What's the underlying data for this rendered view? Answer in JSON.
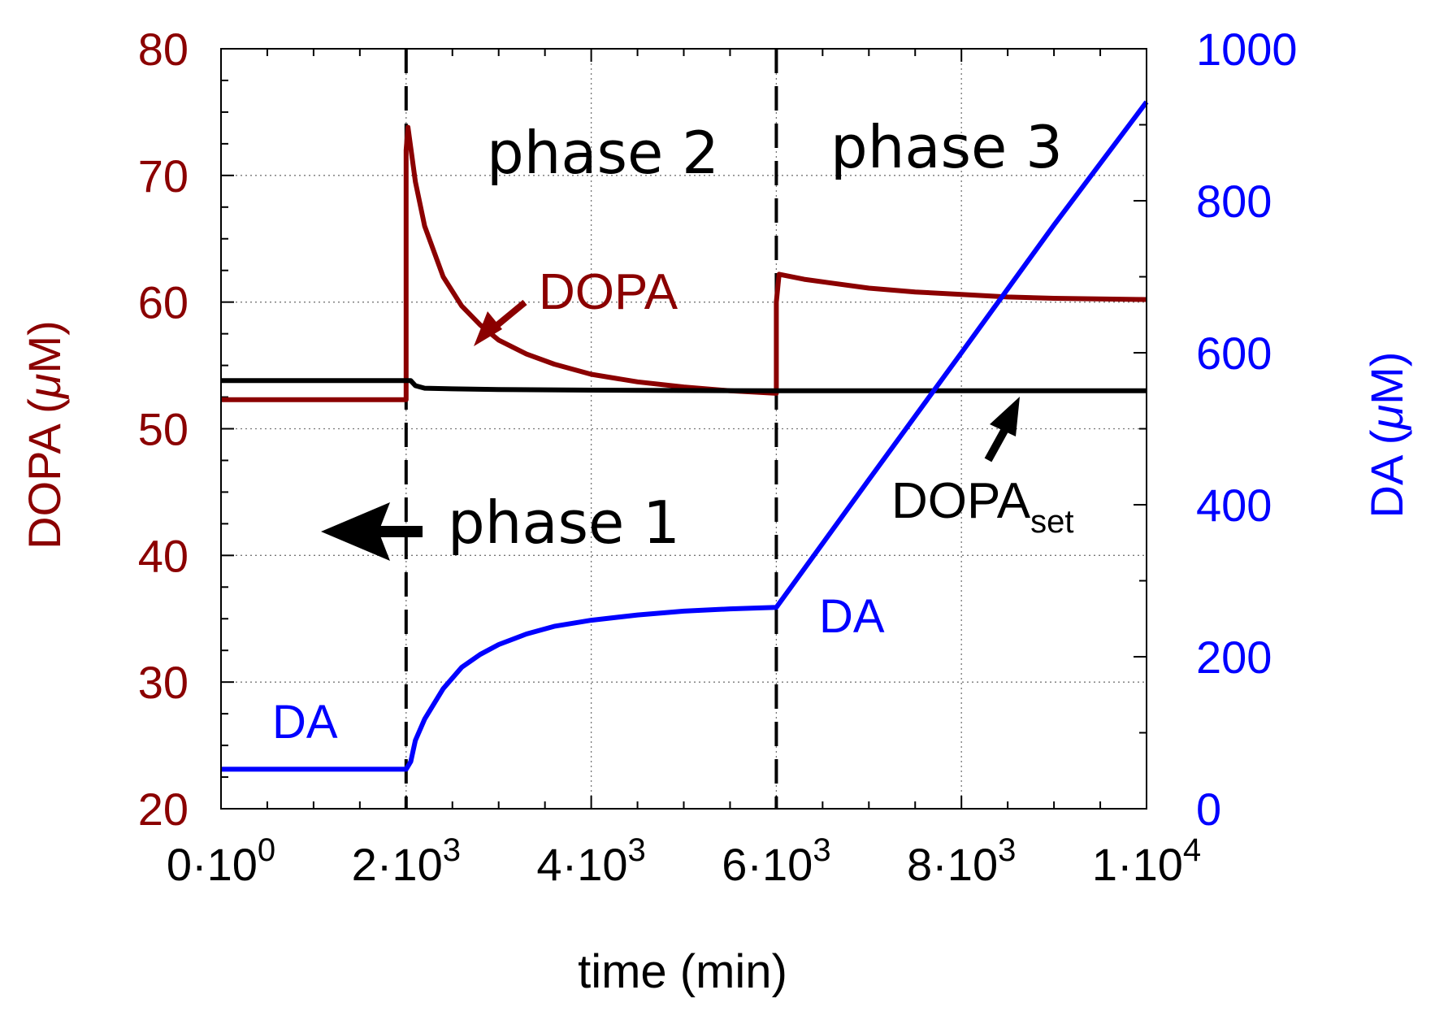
{
  "chart_data": {
    "type": "line",
    "x_axis": {
      "label": "time (min)",
      "range": [
        0,
        10000
      ],
      "ticks": [
        {
          "value": 0,
          "mantissa": "0·10",
          "exponent": "0"
        },
        {
          "value": 2000,
          "mantissa": "2·10",
          "exponent": "3"
        },
        {
          "value": 4000,
          "mantissa": "4·10",
          "exponent": "3"
        },
        {
          "value": 6000,
          "mantissa": "6·10",
          "exponent": "3"
        },
        {
          "value": 8000,
          "mantissa": "8·10",
          "exponent": "3"
        },
        {
          "value": 10000,
          "mantissa": "1·10",
          "exponent": "4"
        }
      ]
    },
    "y_left": {
      "label_prefix": "DOPA (",
      "label_mu": "μ",
      "label_suffix": "M)",
      "range": [
        20,
        80
      ],
      "ticks": [
        20,
        30,
        40,
        50,
        60,
        70,
        80
      ],
      "color": "#8b0000"
    },
    "y_right": {
      "label_prefix": "DA (",
      "label_mu": "μ",
      "label_suffix": "M)",
      "range": [
        0,
        1000
      ],
      "ticks": [
        0,
        200,
        400,
        600,
        800,
        1000
      ],
      "color": "#0000ff"
    },
    "grid": true,
    "phase_boundaries": [
      2000,
      6000
    ],
    "series": [
      {
        "name": "DOPA",
        "axis": "left",
        "color": "#8b0000",
        "points": [
          [
            0,
            52.3
          ],
          [
            2000,
            52.3
          ],
          [
            2000,
            72
          ],
          [
            2020,
            73.8
          ],
          [
            2100,
            69.5
          ],
          [
            2200,
            66
          ],
          [
            2400,
            62
          ],
          [
            2600,
            59.7
          ],
          [
            2800,
            58.2
          ],
          [
            3000,
            57
          ],
          [
            3300,
            55.9
          ],
          [
            3600,
            55.1
          ],
          [
            4000,
            54.3
          ],
          [
            4500,
            53.7
          ],
          [
            5000,
            53.3
          ],
          [
            5500,
            53
          ],
          [
            6000,
            52.8
          ],
          [
            6000,
            60
          ],
          [
            6030,
            62.2
          ],
          [
            6300,
            61.8
          ],
          [
            6600,
            61.5
          ],
          [
            7000,
            61.1
          ],
          [
            7500,
            60.8
          ],
          [
            8000,
            60.6
          ],
          [
            8500,
            60.4
          ],
          [
            9000,
            60.3
          ],
          [
            10000,
            60.2
          ]
        ]
      },
      {
        "name": "DOPA_set",
        "axis": "left",
        "color": "#000000",
        "points": [
          [
            0,
            53.8
          ],
          [
            2000,
            53.8
          ],
          [
            2050,
            53.8
          ],
          [
            2100,
            53.4
          ],
          [
            2200,
            53.2
          ],
          [
            2500,
            53.15
          ],
          [
            3000,
            53.1
          ],
          [
            4000,
            53.05
          ],
          [
            6000,
            53
          ],
          [
            10000,
            53
          ]
        ]
      },
      {
        "name": "DA",
        "axis": "right",
        "color": "#0000ff",
        "points": [
          [
            0,
            52
          ],
          [
            2000,
            52
          ],
          [
            2050,
            62
          ],
          [
            2100,
            90
          ],
          [
            2200,
            118
          ],
          [
            2400,
            158
          ],
          [
            2600,
            186
          ],
          [
            2800,
            203
          ],
          [
            3000,
            216
          ],
          [
            3300,
            230
          ],
          [
            3600,
            240
          ],
          [
            4000,
            248
          ],
          [
            4500,
            255
          ],
          [
            5000,
            260
          ],
          [
            5500,
            263
          ],
          [
            6000,
            265
          ],
          [
            7000,
            433
          ],
          [
            8000,
            600
          ],
          [
            9000,
            768
          ],
          [
            10000,
            930
          ]
        ]
      }
    ],
    "annotations": {
      "phase1": "phase 1",
      "phase2": "phase 2",
      "phase3": "phase 3",
      "dopa": "DOPA",
      "dopa_set_main": "DOPA",
      "dopa_set_sub": "set",
      "da_left": "DA",
      "da_right": "DA"
    }
  }
}
